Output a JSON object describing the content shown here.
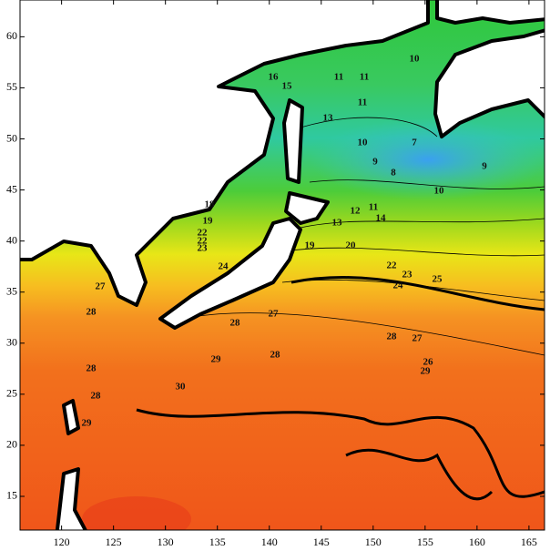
{
  "chart_data": {
    "type": "contour",
    "xlim": [
      116,
      166.5
    ],
    "ylim": [
      11.7,
      63.6
    ],
    "xticks": [
      120,
      125,
      130,
      135,
      140,
      145,
      150,
      155,
      160,
      165
    ],
    "yticks": [
      15,
      20,
      25,
      30,
      35,
      40,
      45,
      50,
      55,
      60
    ],
    "contour_labels": [
      16,
      15,
      11,
      11,
      10,
      13,
      11,
      10,
      7,
      9,
      8,
      9,
      10,
      11,
      12,
      14,
      13,
      19,
      20,
      18,
      19,
      22,
      22,
      23,
      24,
      22,
      23,
      24,
      25,
      27,
      28,
      28,
      27,
      29,
      28,
      28,
      27,
      26,
      29,
      30,
      28,
      28,
      29
    ]
  }
}
